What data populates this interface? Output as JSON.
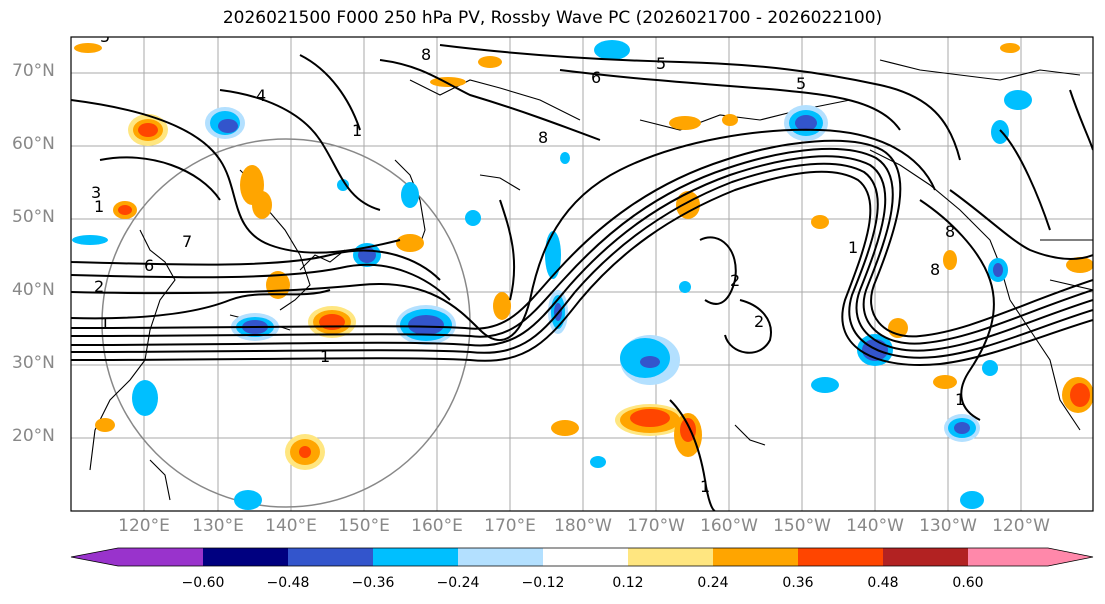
{
  "title": "2026021500 F000 250 hPa PV, Rossby Wave PC (2026021700 - 2026022100)",
  "lat_labels": [
    "70°N",
    "60°N",
    "50°N",
    "40°N",
    "30°N",
    "20°N"
  ],
  "lon_labels": [
    "120°E",
    "130°E",
    "140°E",
    "150°E",
    "160°E",
    "170°E",
    "180°W",
    "170°W",
    "160°W",
    "150°W",
    "140°W",
    "130°W",
    "120°W"
  ],
  "contour_labels": [
    "5",
    "8",
    "6",
    "5",
    "5",
    "4",
    "8",
    "3",
    "1",
    "7",
    "6",
    "2",
    "1",
    "1",
    "2",
    "2",
    "1",
    "1",
    "8",
    "8",
    "1",
    "1"
  ],
  "colorbar": {
    "ticks": [
      "−0.60",
      "−0.48",
      "−0.36",
      "−0.24",
      "−0.12",
      "0.12",
      "0.24",
      "0.36",
      "0.48",
      "0.60"
    ],
    "colors": {
      "lt_-0.60": "#9933cc",
      "-0.60_-0.48": "#000080",
      "-0.48_-0.36": "#3355cc",
      "-0.36_-0.24": "#00bfff",
      "-0.24_-0.12": "#b3e0ff",
      "-0.12_0.12": "#ffffff",
      "0.12_0.24": "#ffe680",
      "0.24_0.36": "#ffa500",
      "0.36_0.48": "#ff4500",
      "0.48_0.60": "#b22222",
      "gt_0.60": "#ff88aa"
    }
  }
}
